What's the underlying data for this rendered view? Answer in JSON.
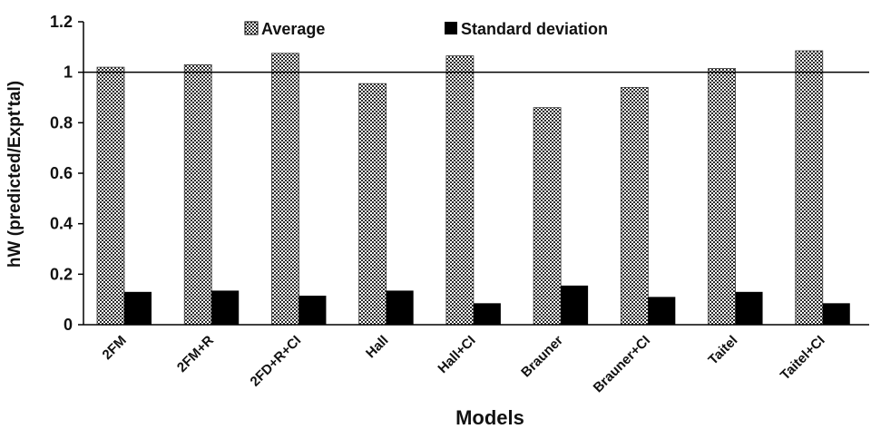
{
  "chart_data": {
    "type": "bar",
    "title": "",
    "xlabel": "Models",
    "ylabel": "hW (predicted/Expt'tal)",
    "ylim": [
      0,
      1.2
    ],
    "yticks": [
      "0",
      "0.2",
      "0.4",
      "0.6",
      "0.8",
      "1",
      "1.2"
    ],
    "reference_line": 1,
    "grid": false,
    "legend_position": "top",
    "categories": [
      "2FM",
      "2FM+R",
      "2FD+R+CI",
      "Hall",
      "Hall+CI",
      "Brauner",
      "Brauner+CI",
      "Taitel",
      "Taitel+CI"
    ],
    "series": [
      {
        "name": "Average",
        "color": "#d9d9d9",
        "pattern": "checkered",
        "values": [
          1.02,
          1.03,
          1.075,
          0.955,
          1.065,
          0.86,
          0.94,
          1.015,
          1.085
        ]
      },
      {
        "name": "Standard deviation",
        "color": "#000000",
        "pattern": "solid",
        "values": [
          0.13,
          0.135,
          0.115,
          0.135,
          0.085,
          0.155,
          0.11,
          0.13,
          0.085
        ]
      }
    ]
  }
}
